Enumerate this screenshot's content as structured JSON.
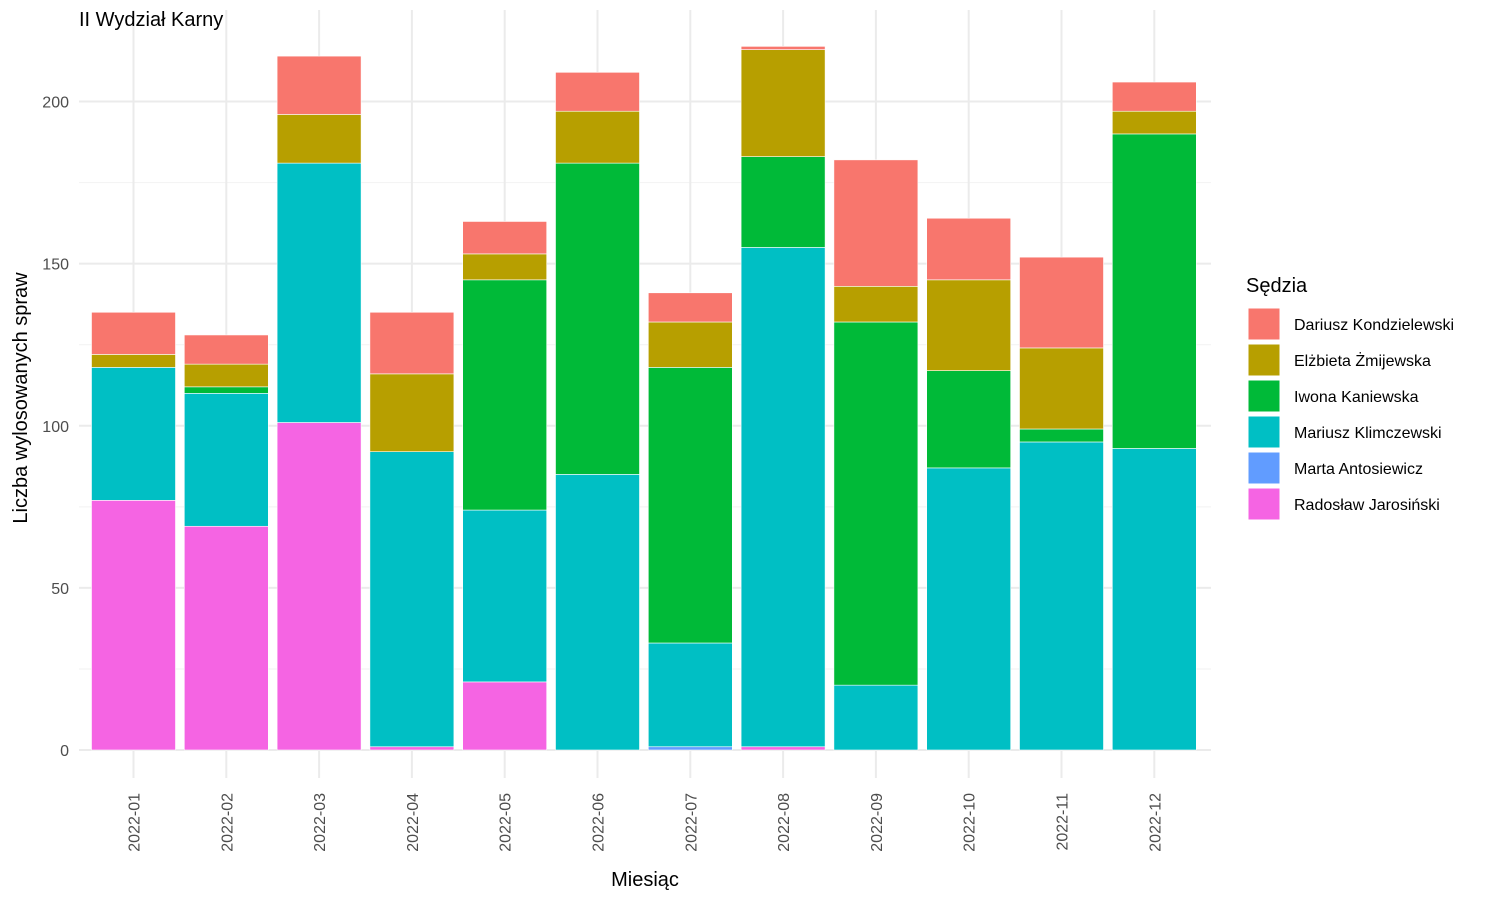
{
  "chart_data": {
    "type": "bar",
    "stacked": true,
    "title": "II Wydział Karny",
    "xlabel": "Miesiąc",
    "ylabel": "Liczba wylosowanych spraw",
    "ylim": [
      0,
      220
    ],
    "yticks": [
      0,
      50,
      100,
      150,
      200
    ],
    "grid": true,
    "legend_position": "right",
    "legend_title": "Sędzia",
    "categories": [
      "2022-01",
      "2022-02",
      "2022-03",
      "2022-04",
      "2022-05",
      "2022-06",
      "2022-07",
      "2022-08",
      "2022-09",
      "2022-10",
      "2022-11",
      "2022-12"
    ],
    "series": [
      {
        "name": "Radosław Jarosiński",
        "color": "#F564E3",
        "values": [
          77,
          69,
          101,
          1,
          21,
          0,
          0,
          1,
          0,
          0,
          0,
          0
        ]
      },
      {
        "name": "Marta Antosiewicz",
        "color": "#619CFF",
        "values": [
          0,
          0,
          0,
          0,
          0,
          0,
          1,
          0,
          0,
          0,
          0,
          0
        ]
      },
      {
        "name": "Mariusz Klimczewski",
        "color": "#00BFC4",
        "values": [
          41,
          41,
          80,
          91,
          53,
          85,
          32,
          154,
          20,
          87,
          95,
          93
        ]
      },
      {
        "name": "Iwona Kaniewska",
        "color": "#00BA38",
        "values": [
          0,
          2,
          0,
          0,
          71,
          96,
          85,
          28,
          112,
          30,
          4,
          97
        ]
      },
      {
        "name": "Elżbieta Żmijewska",
        "color": "#B79F00",
        "values": [
          4,
          7,
          15,
          24,
          8,
          16,
          14,
          33,
          11,
          28,
          25,
          7
        ]
      },
      {
        "name": "Dariusz Kondzielewski",
        "color": "#F8766D",
        "values": [
          13,
          9,
          18,
          19,
          10,
          12,
          9,
          1,
          39,
          19,
          28,
          9
        ]
      }
    ],
    "legend_order": [
      "Dariusz Kondzielewski",
      "Elżbieta Żmijewska",
      "Iwona Kaniewska",
      "Mariusz Klimczewski",
      "Marta Antosiewicz",
      "Radosław Jarosiński"
    ]
  }
}
